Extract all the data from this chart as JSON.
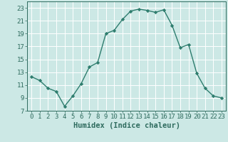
{
  "x": [
    0,
    1,
    2,
    3,
    4,
    5,
    6,
    7,
    8,
    9,
    10,
    11,
    12,
    13,
    14,
    15,
    16,
    17,
    18,
    19,
    20,
    21,
    22,
    23
  ],
  "y": [
    12.3,
    11.7,
    10.5,
    10.0,
    7.7,
    9.3,
    11.2,
    13.8,
    14.5,
    19.0,
    19.5,
    21.2,
    22.5,
    22.8,
    22.6,
    22.3,
    22.7,
    20.3,
    16.8,
    17.3,
    12.8,
    10.5,
    9.3,
    9.0
  ],
  "line_color": "#2e7d6e",
  "marker": "D",
  "marker_size": 2.2,
  "line_width": 1.0,
  "bg_color": "#cce8e5",
  "grid_color": "#ffffff",
  "tick_color": "#2e6b5e",
  "label_color": "#2e6b5e",
  "xlabel": "Humidex (Indice chaleur)",
  "xlim": [
    -0.5,
    23.5
  ],
  "ylim": [
    7,
    24
  ],
  "yticks": [
    7,
    9,
    11,
    13,
    15,
    17,
    19,
    21,
    23
  ],
  "xticks": [
    0,
    1,
    2,
    3,
    4,
    5,
    6,
    7,
    8,
    9,
    10,
    11,
    12,
    13,
    14,
    15,
    16,
    17,
    18,
    19,
    20,
    21,
    22,
    23
  ],
  "font_size": 6.5,
  "xlabel_font_size": 7.5
}
